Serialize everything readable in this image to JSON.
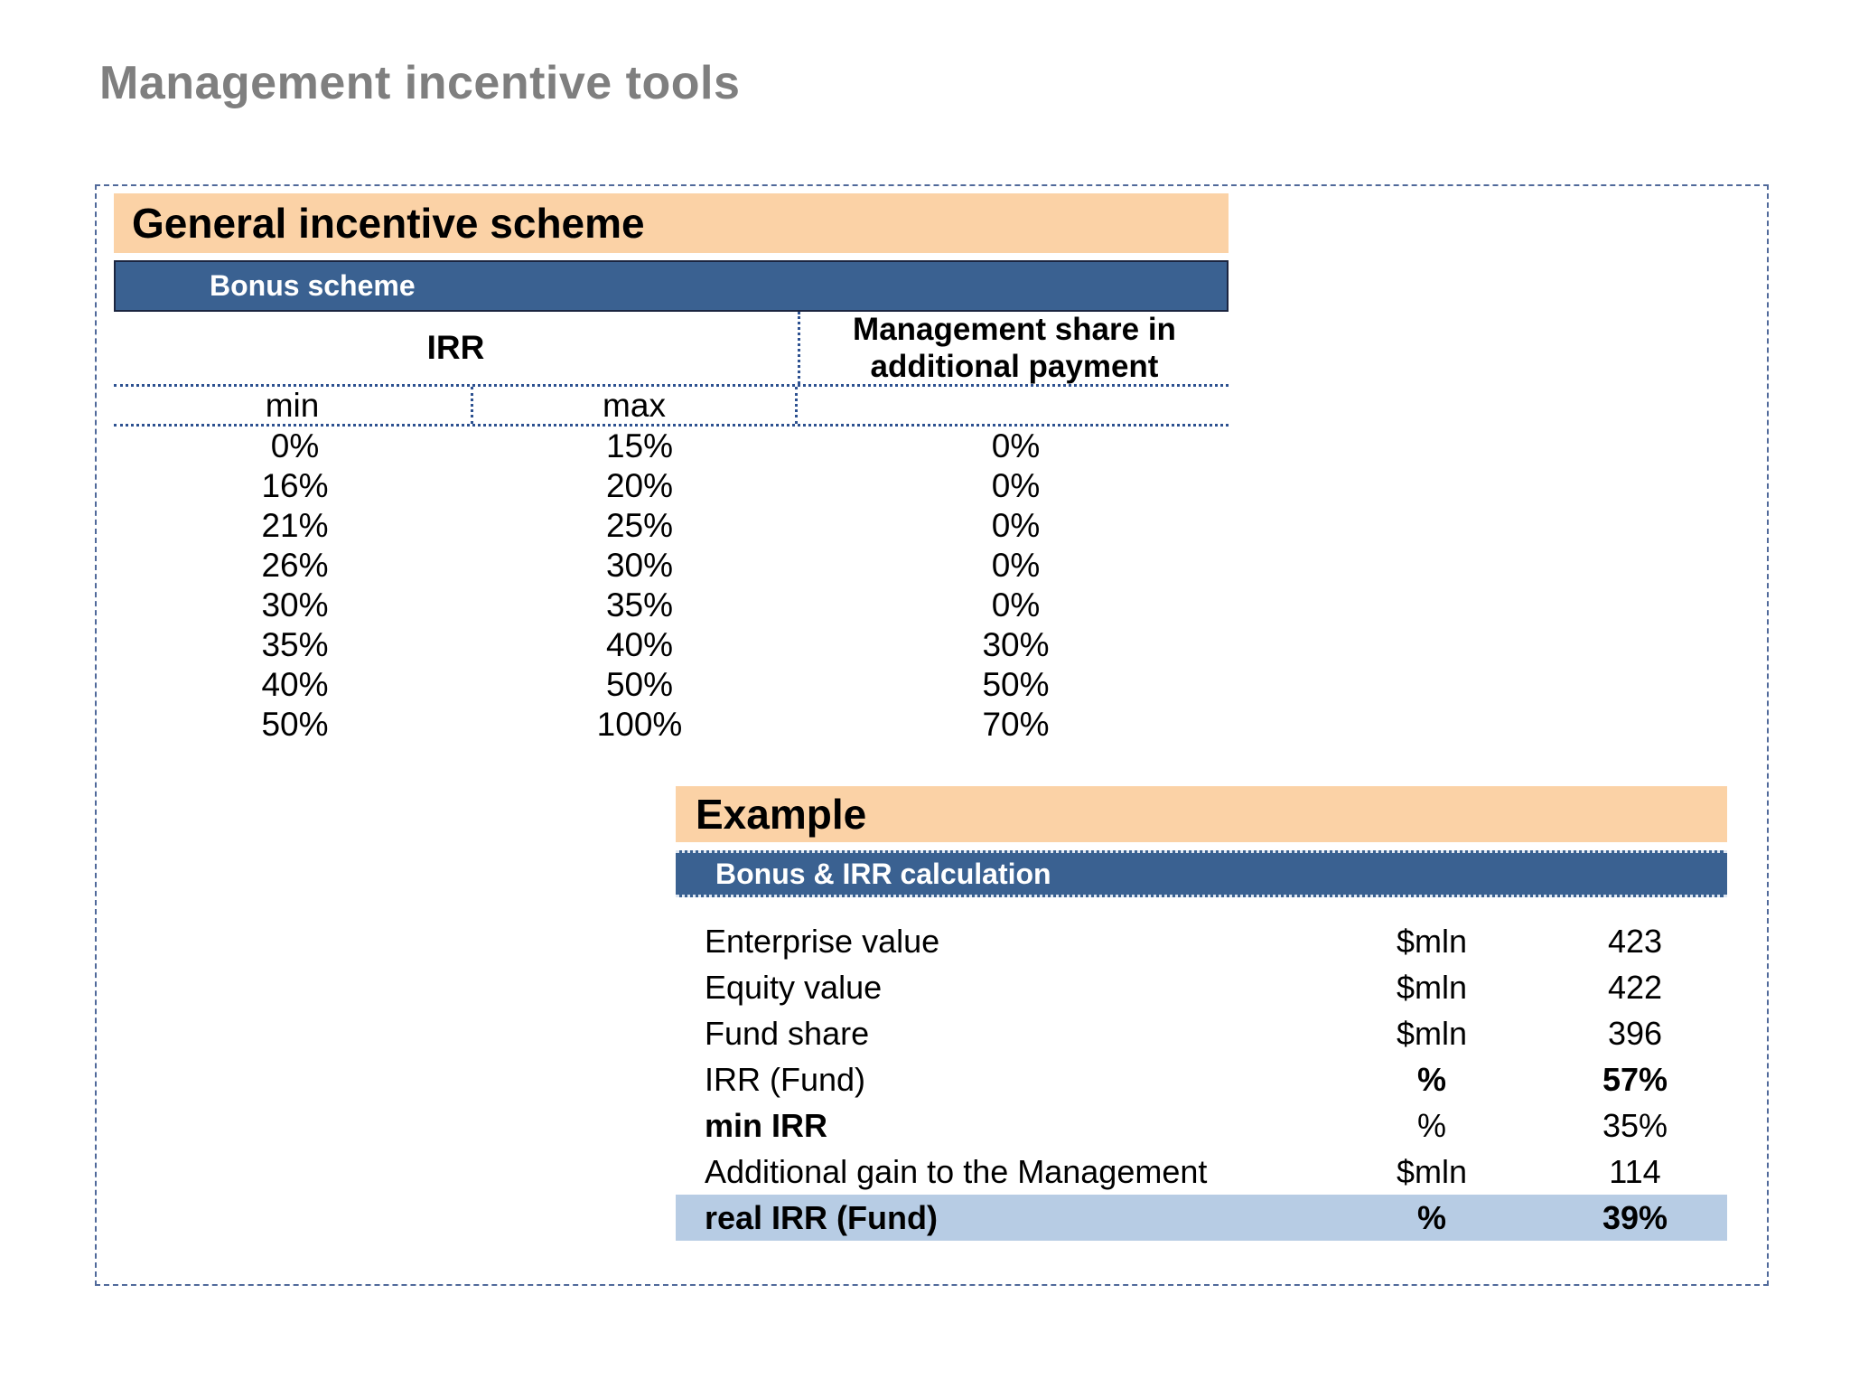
{
  "page": {
    "title": "Management incentive tools"
  },
  "general_scheme": {
    "title": "General incentive scheme",
    "banner": "Bonus scheme",
    "table": {
      "irr_header": "IRR",
      "mgmt_header": "Management share in additional payment",
      "min_header": "min",
      "max_header": "max",
      "rows": [
        {
          "min": "0%",
          "max": "15%",
          "share": "0%"
        },
        {
          "min": "16%",
          "max": "20%",
          "share": "0%"
        },
        {
          "min": "21%",
          "max": "25%",
          "share": "0%"
        },
        {
          "min": "26%",
          "max": "30%",
          "share": "0%"
        },
        {
          "min": "30%",
          "max": "35%",
          "share": "0%"
        },
        {
          "min": "35%",
          "max": "40%",
          "share": "30%"
        },
        {
          "min": "40%",
          "max": "50%",
          "share": "50%"
        },
        {
          "min": "50%",
          "max": "100%",
          "share": "70%"
        }
      ]
    }
  },
  "example": {
    "title": "Example",
    "banner": "Bonus & IRR calculation",
    "rows": [
      {
        "label": "Enterprise value",
        "unit": "$mln",
        "value": "423"
      },
      {
        "label": "Equity value",
        "unit": "$mln",
        "value": "422"
      },
      {
        "label": "Fund share",
        "unit": "$mln",
        "value": "396"
      },
      {
        "label": "IRR (Fund)",
        "unit": "%",
        "value": "57%"
      },
      {
        "label": "min IRR",
        "unit": "%",
        "value": "35%"
      },
      {
        "label": "Additional gain to the Management",
        "unit": "$mln",
        "value": "114"
      },
      {
        "label": "real IRR (Fund)",
        "unit": "%",
        "value": "39%"
      }
    ]
  },
  "colors": {
    "peach": "#fbd2a6",
    "band-blue": "#3a6191",
    "highlight-blue": "#b7cce4",
    "dotted-line": "#2d5190",
    "dashed-border": "#50699a",
    "title-gray": "#7f7f7f"
  }
}
